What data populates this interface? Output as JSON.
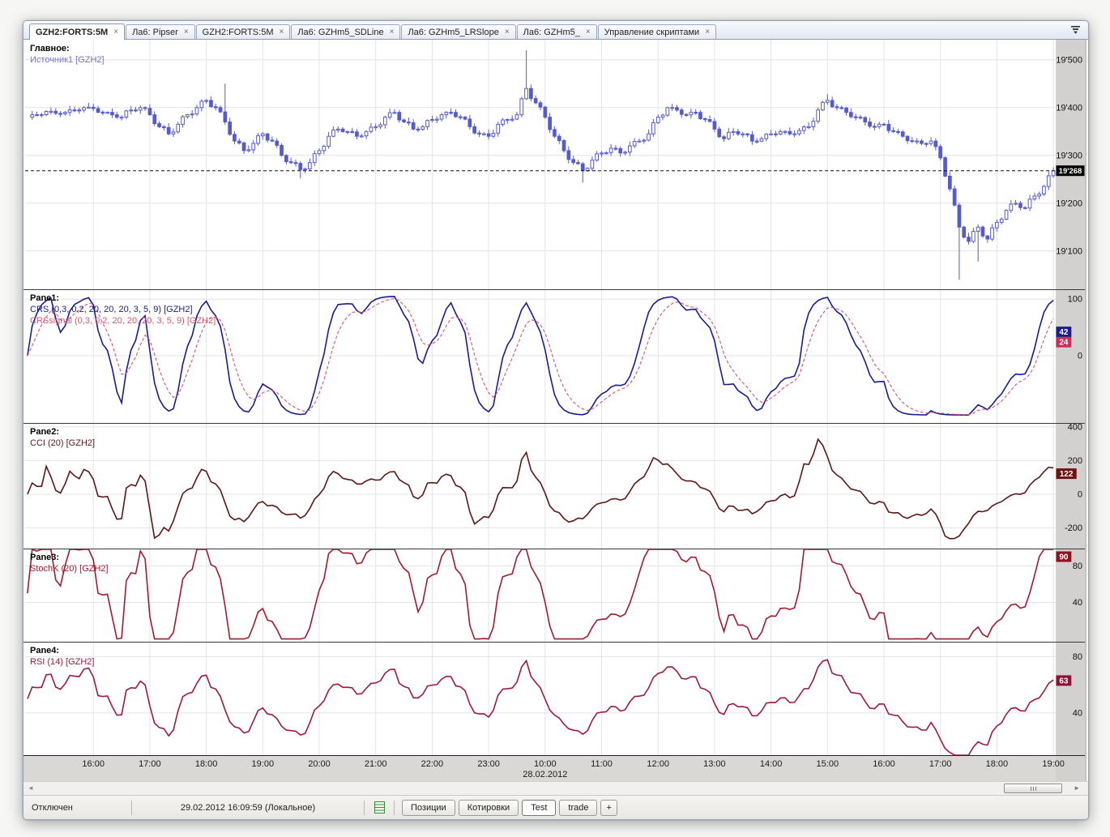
{
  "tabs": {
    "items": [
      {
        "label": "GZH2:FORTS:5M",
        "active": true
      },
      {
        "label": "Ла6: Pipser",
        "active": false
      },
      {
        "label": "GZH2:FORTS:5M",
        "active": false
      },
      {
        "label": "Ла6: GZHm5_SDLine",
        "active": false
      },
      {
        "label": "Ла6: GZHm5_LRSlope",
        "active": false
      },
      {
        "label": "Ла6: GZHm5_",
        "active": false
      },
      {
        "label": "Управление скриптами",
        "active": false
      }
    ],
    "close_glyph": "×"
  },
  "main_pane": {
    "title": "Главное:",
    "source_label": "Источник1 [GZH2]",
    "last_price": 19268,
    "last_price_label": "19'268",
    "ticks": [
      {
        "value": 19500,
        "label": "19'500"
      },
      {
        "value": 19400,
        "label": "19'400"
      },
      {
        "value": 19300,
        "label": "19'300"
      },
      {
        "value": 19200,
        "label": "19'200"
      },
      {
        "value": 19100,
        "label": "19'100"
      }
    ]
  },
  "colors": {
    "candle": "#565bca",
    "candle_up_fill": "#ffffff",
    "source_label": "#7173cf",
    "crs": "#1b1b8e",
    "crs_badge": "#1b1b8e",
    "crs_signal": "#d5566f",
    "crs_signal_badge": "#cb2d5a",
    "cci": "#5c1616",
    "cci_badge": "#6e1212",
    "stoch": "#9e1b30",
    "stoch_badge": "#8e1022",
    "rsi": "#9c1a3e",
    "rsi_badge": "#8e1238",
    "grid": "#e4e4e4",
    "pane_separator": "#3a3a3a",
    "last_price_badge": "#000000",
    "axis_gutter": "#d2d1cf",
    "time_strip": "#dad8d5"
  },
  "time_axis": {
    "labels": [
      {
        "label": "16:00",
        "kf": 7
      },
      {
        "label": "17:00",
        "kf": 13
      },
      {
        "label": "18:00",
        "kf": 19
      },
      {
        "label": "19:00",
        "kf": 25
      },
      {
        "label": "20:00",
        "kf": 31
      },
      {
        "label": "21:00",
        "kf": 37
      },
      {
        "label": "22:00",
        "kf": 43
      },
      {
        "label": "23:00",
        "kf": 49
      },
      {
        "label": "10:00",
        "kf": 55,
        "date": "28.02.2012"
      },
      {
        "label": "11:00",
        "kf": 61
      },
      {
        "label": "12:00",
        "kf": 67
      },
      {
        "label": "13:00",
        "kf": 73
      },
      {
        "label": "14:00",
        "kf": 79
      },
      {
        "label": "15:00",
        "kf": 85
      },
      {
        "label": "16:00",
        "kf": 91
      },
      {
        "label": "17:00",
        "kf": 97
      },
      {
        "label": "18:00",
        "kf": 103
      },
      {
        "label": "19:00",
        "kf": 109
      }
    ]
  },
  "status_bar": {
    "connection": "Отключен",
    "clock": "29.02.2012 16:09:59 (Локальное)",
    "buttons": [
      {
        "label": "Позиции",
        "active": false
      },
      {
        "label": "Котировки",
        "active": false
      },
      {
        "label": "Test",
        "active": true
      },
      {
        "label": "trade",
        "active": false
      },
      {
        "label": "+",
        "active": false
      }
    ]
  },
  "chart_data": {
    "type": "candlestick",
    "symbol": "GZH2:FORTS",
    "interval": "5M",
    "price_range": [
      19020,
      19542
    ],
    "keyframe_closes": [
      19380,
      19385,
      19392,
      19388,
      19390,
      19395,
      19400,
      19398,
      19390,
      19385,
      19380,
      19395,
      19400,
      19385,
      19360,
      19345,
      19365,
      19385,
      19400,
      19415,
      19400,
      19370,
      19330,
      19310,
      19325,
      19345,
      19330,
      19300,
      19285,
      19270,
      19285,
      19310,
      19340,
      19355,
      19350,
      19340,
      19350,
      19360,
      19380,
      19390,
      19370,
      19355,
      19360,
      19375,
      19385,
      19390,
      19380,
      19360,
      19345,
      19340,
      19365,
      19375,
      19385,
      19440,
      19410,
      19380,
      19340,
      19310,
      19285,
      19268,
      19290,
      19305,
      19315,
      19305,
      19320,
      19330,
      19345,
      19380,
      19400,
      19395,
      19385,
      19390,
      19375,
      19355,
      19335,
      19350,
      19345,
      19330,
      19335,
      19345,
      19350,
      19345,
      19352,
      19360,
      19395,
      19415,
      19400,
      19390,
      19380,
      19370,
      19360,
      19365,
      19350,
      19340,
      19330,
      19325,
      19330,
      19295,
      19230,
      19150,
      19120,
      19150,
      19125,
      19160,
      19185,
      19200,
      19190,
      19215,
      19235,
      19268
    ],
    "wick_overrides_by_keyframe": {
      "21": [
        null,
        19450
      ],
      "29": [
        19252,
        null
      ],
      "53": [
        null,
        19520
      ],
      "59": [
        19243,
        null
      ],
      "85": [
        null,
        19428
      ],
      "99": [
        19040,
        null
      ],
      "101": [
        19078,
        null
      ]
    },
    "panes": [
      {
        "title": "Pane1:",
        "range": [
          -119,
          116
        ],
        "ticks": [
          {
            "value": 100,
            "label": "100"
          },
          {
            "value": 0,
            "label": "0"
          }
        ],
        "series": [
          {
            "name": "CRS (0,3, 0,2, 20, 20, 20, 3, 5, 9) [GZH2]",
            "indicator": "crs",
            "dash": false,
            "last": 42,
            "last_label": "42"
          },
          {
            "name": "CRSsignal (0,3, 0,2, 20, 20, 20, 3, 5, 9) [GZH2]",
            "indicator": "crs_signal",
            "dash": true,
            "last": 24,
            "last_label": "24"
          }
        ]
      },
      {
        "title": "Pane2:",
        "range": [
          -323,
          419
        ],
        "ticks": [
          {
            "value": 400,
            "label": "400"
          },
          {
            "value": 200,
            "label": "200"
          },
          {
            "value": 0,
            "label": "0"
          },
          {
            "value": -200,
            "label": "-200"
          }
        ],
        "series": [
          {
            "name": "CCI (20) [GZH2]",
            "indicator": "cci",
            "dash": false,
            "last": 122,
            "last_label": "122"
          }
        ]
      },
      {
        "title": "Pane3:",
        "range": [
          -3,
          98
        ],
        "ticks": [
          {
            "value": 80,
            "label": "80"
          },
          {
            "value": 40,
            "label": "40"
          }
        ],
        "series": [
          {
            "name": "StochK (20) [GZH2]",
            "indicator": "stoch",
            "dash": false,
            "last": 90,
            "last_label": "90"
          }
        ]
      },
      {
        "title": "Pane4:",
        "range": [
          10,
          90
        ],
        "ticks": [
          {
            "value": 80,
            "label": "80"
          },
          {
            "value": 40,
            "label": "40"
          }
        ],
        "series": [
          {
            "name": "RSI (14) [GZH2]",
            "indicator": "rsi",
            "dash": false,
            "last": 63,
            "last_label": "63"
          }
        ]
      }
    ]
  }
}
